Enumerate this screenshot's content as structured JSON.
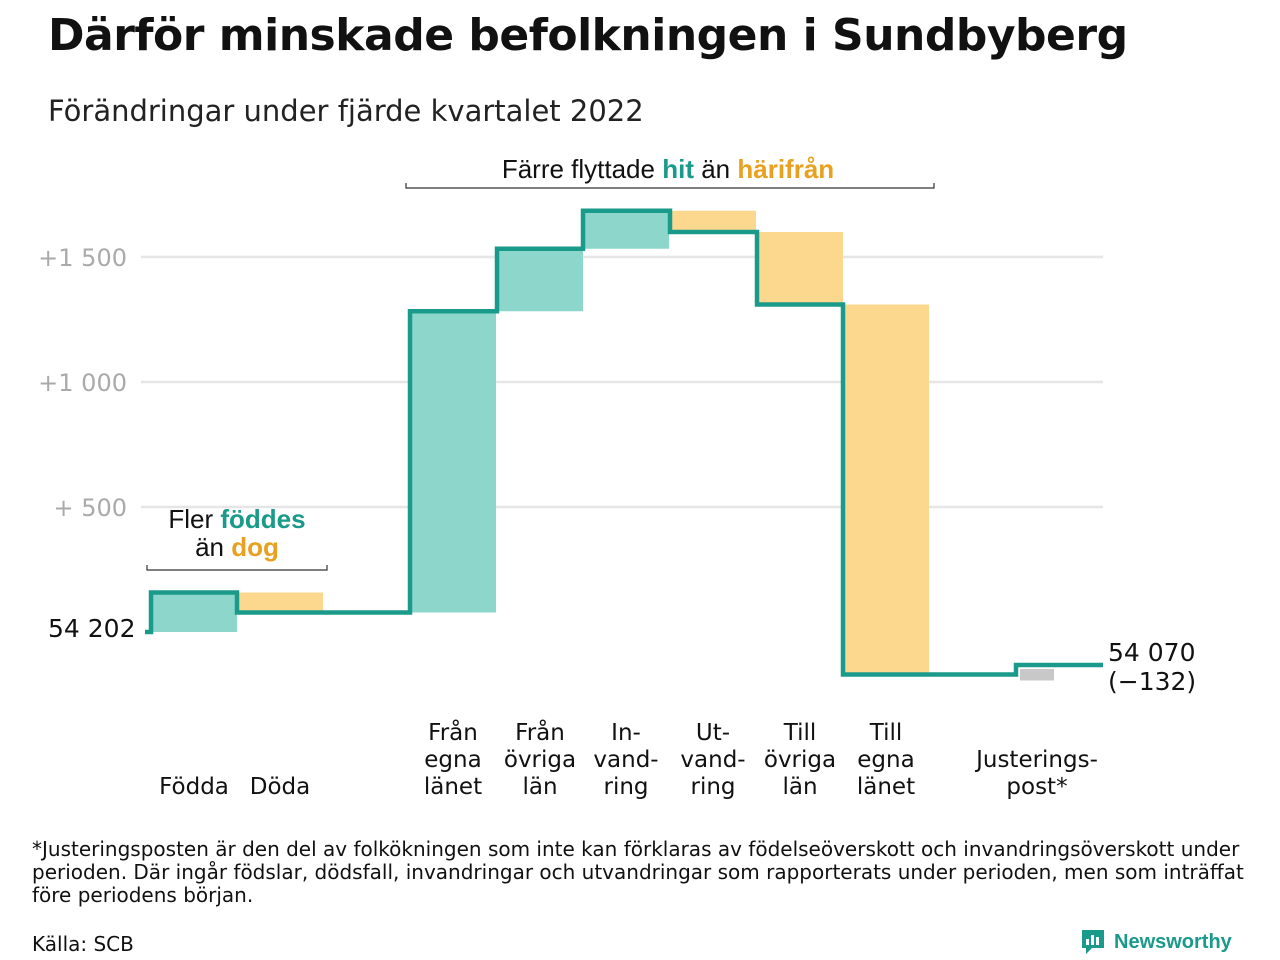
{
  "header": {
    "title": "Därför minskade befolkningen i Sundbyberg",
    "subtitle": "Förändringar under fjärde kvartalet 2022"
  },
  "colors": {
    "increase_fill": "#8dd6cc",
    "decrease_fill": "#fcd88e",
    "adjustment_fill": "#c8c8c8",
    "line": "#1a9a8a",
    "highlight_teal": "#1a9a8a",
    "highlight_orange": "#e8a020",
    "grid": "#e6e6e6",
    "tick_text": "#aaaaaa"
  },
  "annotations": {
    "births": {
      "part1": "Fler ",
      "hl1": "föddes",
      "part2": "än ",
      "hl2": "dog"
    },
    "moves": {
      "part1": "Färre flyttade ",
      "hl1": "hit",
      "part2": " än ",
      "hl2": "härifrån"
    }
  },
  "chart_data": {
    "type": "waterfall",
    "start_label": "54 202",
    "start_value": 54202,
    "end_value": 54070,
    "end_label_lines": [
      "54 070",
      "(−132)"
    ],
    "yticks": [
      {
        "value": 500,
        "label": "+ 500"
      },
      {
        "value": 1000,
        "label": "+1 000"
      },
      {
        "value": 1500,
        "label": "+1 500"
      }
    ],
    "ylim": [
      -250,
      1900
    ],
    "grid": true,
    "steps": [
      {
        "category_lines": [
          "Födda"
        ],
        "change": 158,
        "kind": "increase"
      },
      {
        "category_lines": [
          "Döda"
        ],
        "change": -80,
        "kind": "decrease"
      },
      {
        "category_lines": [
          "Från",
          "egna",
          "länet"
        ],
        "change": 1205,
        "kind": "increase"
      },
      {
        "category_lines": [
          "Från",
          "övriga",
          "län"
        ],
        "change": 250,
        "kind": "increase"
      },
      {
        "category_lines": [
          "In-",
          "vand-",
          "ring"
        ],
        "change": 152,
        "kind": "increase"
      },
      {
        "category_lines": [
          "Ut-",
          "vand-",
          "ring"
        ],
        "change": -85,
        "kind": "decrease"
      },
      {
        "category_lines": [
          "Till",
          "övriga",
          "län"
        ],
        "change": -290,
        "kind": "decrease"
      },
      {
        "category_lines": [
          "Till",
          "egna",
          "länet"
        ],
        "change": -1480,
        "kind": "decrease"
      },
      {
        "category_lines": [
          "Justerings-",
          "post*"
        ],
        "change": 38,
        "kind": "adjustment"
      }
    ]
  },
  "footer": {
    "footnote": "*Justeringsposten är den del av folkökningen som inte kan förklaras av födelseöverskott och invandringsöverskott under perioden. Där ingår födslar, dödsfall, invandringar och utvandringar som rapporterats under perioden, men som inträffat före periodens början.",
    "source": "Källa: SCB",
    "brand": "Newsworthy"
  }
}
